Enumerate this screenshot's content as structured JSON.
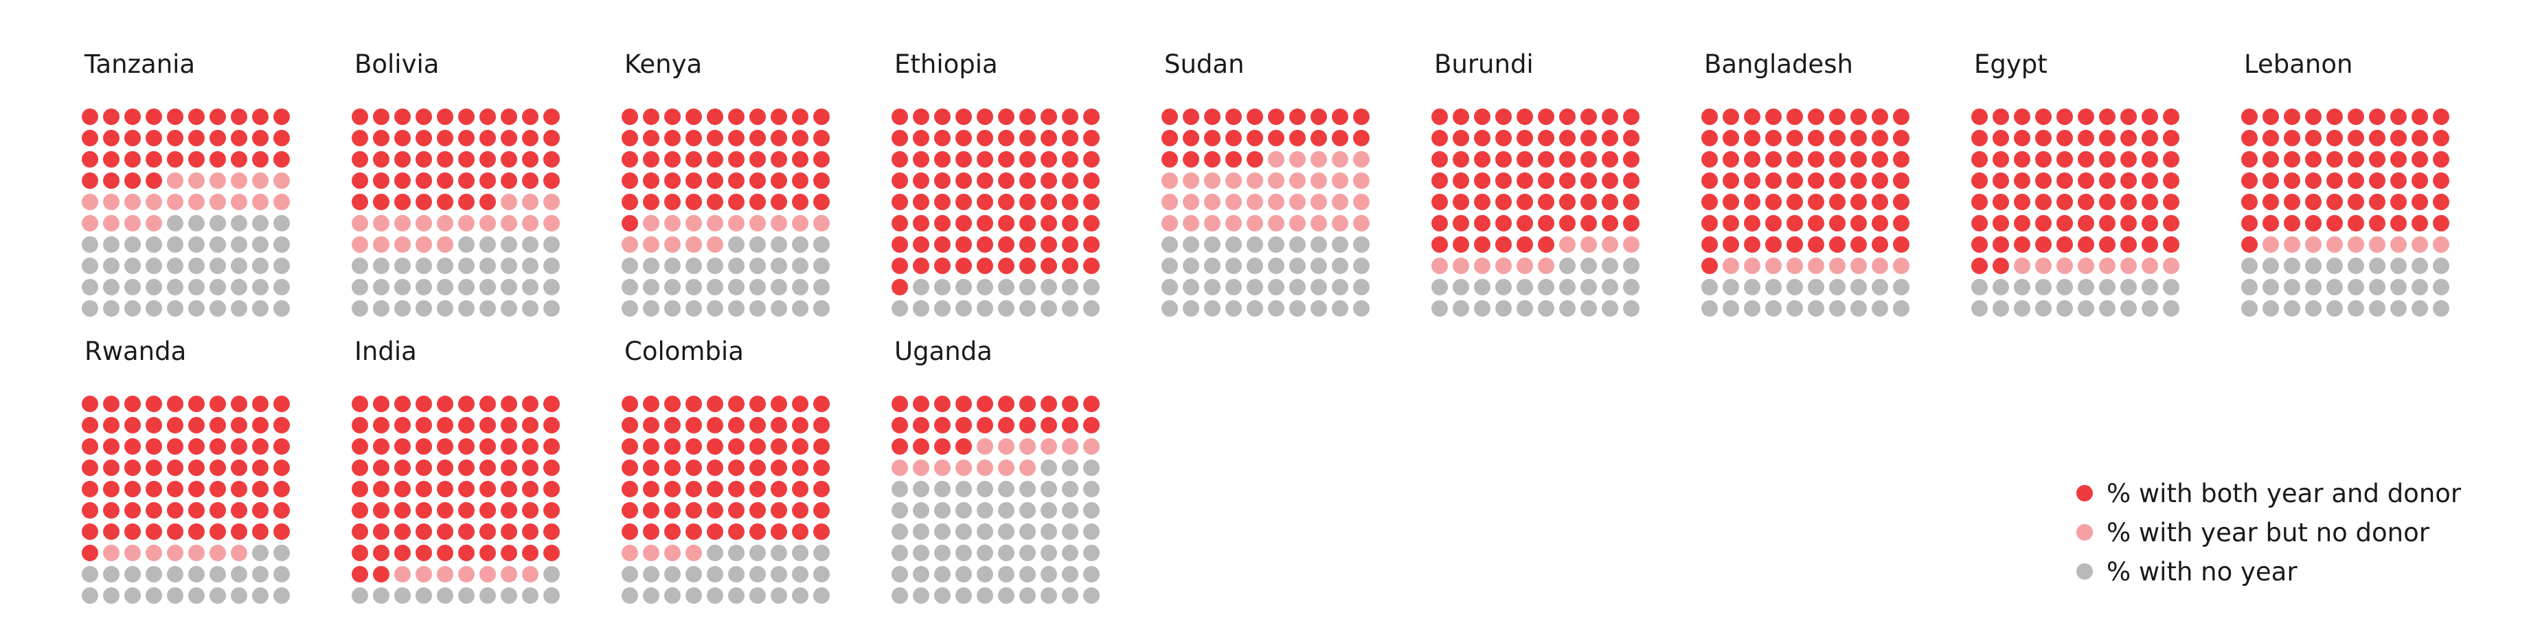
{
  "colors": {
    "both": "#ee3b3e",
    "year_only": "#f5a1a3",
    "no_year": "#b9b9b9"
  },
  "chart_data": {
    "type": "waffle",
    "grid": "10x10 dots, filled row by row from top-left",
    "legend_placement": "bottom-right",
    "legend": [
      {
        "key": "both",
        "label": "% with both year and donor"
      },
      {
        "key": "year_only",
        "label": "% with year but no donor"
      },
      {
        "key": "no_year",
        "label": "% with no year"
      }
    ],
    "countries": [
      {
        "name": "Tanzania",
        "both": 34,
        "year_but_no_donor": 20,
        "no_year": 46
      },
      {
        "name": "Bolivia",
        "both": 47,
        "year_but_no_donor": 18,
        "no_year": 35
      },
      {
        "name": "Kenya",
        "both": 51,
        "year_but_no_donor": 14,
        "no_year": 35
      },
      {
        "name": "Ethiopia",
        "both": 81,
        "year_but_no_donor": 0,
        "no_year": 19
      },
      {
        "name": "Sudan",
        "both": 25,
        "year_but_no_donor": 35,
        "no_year": 40
      },
      {
        "name": "Burundi",
        "both": 66,
        "year_but_no_donor": 10,
        "no_year": 24
      },
      {
        "name": "Bangladesh",
        "both": 71,
        "year_but_no_donor": 9,
        "no_year": 20
      },
      {
        "name": "Egypt",
        "both": 72,
        "year_but_no_donor": 8,
        "no_year": 20
      },
      {
        "name": "Lebanon",
        "both": 61,
        "year_but_no_donor": 9,
        "no_year": 30
      },
      {
        "name": "Rwanda",
        "both": 71,
        "year_but_no_donor": 7,
        "no_year": 22
      },
      {
        "name": "India",
        "both": 82,
        "year_but_no_donor": 7,
        "no_year": 11
      },
      {
        "name": "Colombia",
        "both": 70,
        "year_but_no_donor": 4,
        "no_year": 26
      },
      {
        "name": "Uganda",
        "both": 24,
        "year_but_no_donor": 13,
        "no_year": 63
      }
    ]
  }
}
